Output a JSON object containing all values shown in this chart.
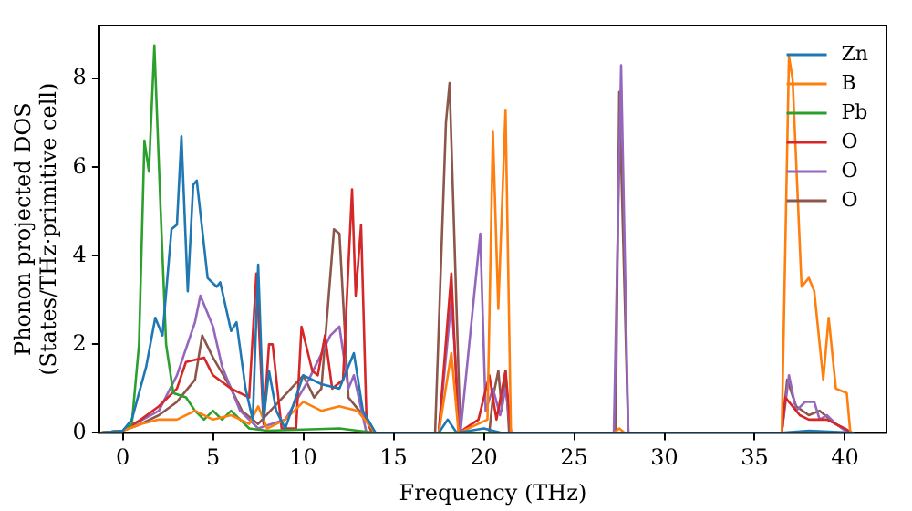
{
  "chart_data": {
    "type": "line",
    "xlabel": "Frequency (THz)",
    "ylabel": "Phonon projected DOS\n(States/THz·primitive cell)",
    "xlim": [
      -1.3,
      42.3
    ],
    "ylim": [
      0,
      9.2
    ],
    "xticks": [
      0,
      5,
      10,
      15,
      20,
      25,
      30,
      35,
      40
    ],
    "yticks": [
      0,
      2,
      4,
      6,
      8
    ],
    "grid": false,
    "legend": "top right",
    "marker": "none",
    "line_style": "solid",
    "series": [
      {
        "name": "Zn",
        "color": "#1f77b4",
        "x": [
          -1.2,
          0,
          0.5,
          1.3,
          1.8,
          2.2,
          2.7,
          3.0,
          3.25,
          3.6,
          3.9,
          4.1,
          4.7,
          5.2,
          5.4,
          6.0,
          6.3,
          6.8,
          7.2,
          7.5,
          7.8,
          8.1,
          8.5,
          9.0,
          10.0,
          11.0,
          12.0,
          12.8,
          13.3,
          14.0,
          17.5,
          18.0,
          18.5,
          20.0,
          21.0,
          36.5,
          38,
          40.5
        ],
        "values": [
          0,
          0.05,
          0.3,
          1.5,
          2.6,
          2.2,
          4.6,
          4.7,
          6.7,
          3.2,
          5.6,
          5.7,
          3.5,
          3.3,
          3.4,
          2.3,
          2.5,
          1.0,
          0.3,
          3.8,
          0.3,
          1.4,
          0.5,
          0.1,
          1.3,
          1.1,
          1.0,
          1.8,
          0.5,
          0,
          0,
          0.3,
          0,
          0.1,
          0,
          0,
          0.05,
          0
        ]
      },
      {
        "name": "B",
        "color": "#ff7f0e",
        "x": [
          -1.2,
          0,
          1,
          2,
          3,
          4,
          5,
          6,
          7,
          7.5,
          8,
          9,
          10,
          11,
          12,
          13,
          14,
          17.5,
          18.2,
          18.6,
          20.2,
          20.5,
          20.8,
          21.2,
          21.5,
          27.2,
          27.5,
          27.8,
          36.5,
          36.9,
          37.1,
          37.6,
          38.0,
          38.3,
          38.8,
          39.1,
          39.5,
          40.1,
          40.3
        ],
        "values": [
          0,
          0.05,
          0.2,
          0.3,
          0.3,
          0.5,
          0.3,
          0.4,
          0.2,
          0.6,
          0.1,
          0.3,
          0.7,
          0.5,
          0.6,
          0.5,
          0,
          0,
          1.8,
          0,
          0.3,
          6.8,
          2.8,
          7.3,
          0,
          0,
          0.1,
          0,
          0,
          8.5,
          8.0,
          3.3,
          3.5,
          3.2,
          1.2,
          2.6,
          1.0,
          0.9,
          0
        ]
      },
      {
        "name": "Pb",
        "color": "#2ca02c",
        "x": [
          -1.2,
          0,
          0.5,
          0.9,
          1.2,
          1.45,
          1.75,
          2.1,
          2.4,
          2.8,
          3.5,
          4,
          4.5,
          5,
          5.5,
          6,
          7,
          8,
          12,
          13,
          14,
          40.5
        ],
        "values": [
          0,
          0.05,
          0.2,
          2.0,
          6.6,
          5.9,
          8.75,
          5.0,
          2.0,
          0.9,
          0.8,
          0.5,
          0.3,
          0.5,
          0.3,
          0.5,
          0.1,
          0.05,
          0.1,
          0.05,
          0,
          0
        ]
      },
      {
        "name": "O",
        "color": "#d62728",
        "x": [
          -1.2,
          0,
          1,
          2,
          3,
          3.5,
          4.5,
          5,
          6,
          7,
          7.4,
          7.8,
          8.1,
          8.3,
          8.8,
          9.6,
          9.9,
          10.5,
          10.8,
          11.2,
          11.6,
          12.2,
          12.7,
          12.9,
          13.2,
          13.5,
          13.8,
          17.5,
          18.2,
          18.6,
          19.7,
          20.3,
          20.7,
          21.2,
          21.5,
          36.5,
          36.7,
          37.5,
          38,
          39,
          40,
          40.4
        ],
        "values": [
          0,
          0.05,
          0.3,
          0.6,
          1.0,
          1.6,
          1.7,
          1.3,
          1.0,
          0.8,
          3.6,
          0.2,
          2.0,
          2.0,
          0.1,
          0.1,
          2.4,
          1.4,
          1.3,
          2.2,
          1.0,
          1.2,
          5.5,
          3.1,
          4.7,
          0.3,
          0,
          0,
          3.6,
          0,
          0.3,
          1.3,
          0.3,
          1.4,
          0,
          0,
          0.8,
          0.4,
          0.3,
          0.3,
          0.1,
          0
        ]
      },
      {
        "name": "O",
        "color": "#9467bd",
        "x": [
          -1.2,
          0,
          2,
          3,
          4,
          4.3,
          5,
          5.5,
          6.5,
          7.5,
          9,
          10.3,
          11.5,
          12,
          12.5,
          12.8,
          13.5,
          17.5,
          18.2,
          18.7,
          19.8,
          20.1,
          20.5,
          20.9,
          21.2,
          21.5,
          27.2,
          27.6,
          28,
          36.5,
          36.9,
          37.3,
          37.8,
          38.3,
          38.6,
          39,
          39.5,
          40.2
        ],
        "values": [
          0,
          0.05,
          0.5,
          1.3,
          2.5,
          3.1,
          2.4,
          1.5,
          0.5,
          0.1,
          0.3,
          1.2,
          2.2,
          2.4,
          1.0,
          1.3,
          0,
          0,
          3.0,
          0,
          4.5,
          0.5,
          1.0,
          0.4,
          1.0,
          0,
          0,
          8.3,
          0,
          0,
          1.3,
          0.5,
          0.7,
          0.7,
          0.3,
          0.4,
          0.2,
          0
        ]
      },
      {
        "name": "O",
        "color": "#8c564b",
        "x": [
          -1.2,
          0,
          1,
          2,
          3,
          4,
          4.4,
          5,
          6,
          6.6,
          7.5,
          10,
          10.6,
          11,
          11.7,
          12,
          12.5,
          13.5,
          14,
          17.3,
          17.9,
          18.1,
          18.7,
          20.3,
          20.5,
          20.8,
          21,
          21.2,
          21.4,
          27.3,
          27.5,
          28,
          36.5,
          36.8,
          37.3,
          38,
          38.6,
          39.5,
          40.3
        ],
        "values": [
          0,
          0.05,
          0.2,
          0.4,
          0.7,
          1.2,
          2.2,
          1.7,
          1.0,
          0.5,
          0.2,
          1.3,
          0.8,
          1.0,
          4.6,
          4.5,
          0.8,
          0.3,
          0,
          0,
          7.0,
          7.9,
          0,
          0,
          0.8,
          1.4,
          0.5,
          1.4,
          0,
          0,
          7.7,
          0,
          0,
          1.2,
          0.6,
          0.4,
          0.5,
          0.2,
          0
        ]
      }
    ]
  }
}
